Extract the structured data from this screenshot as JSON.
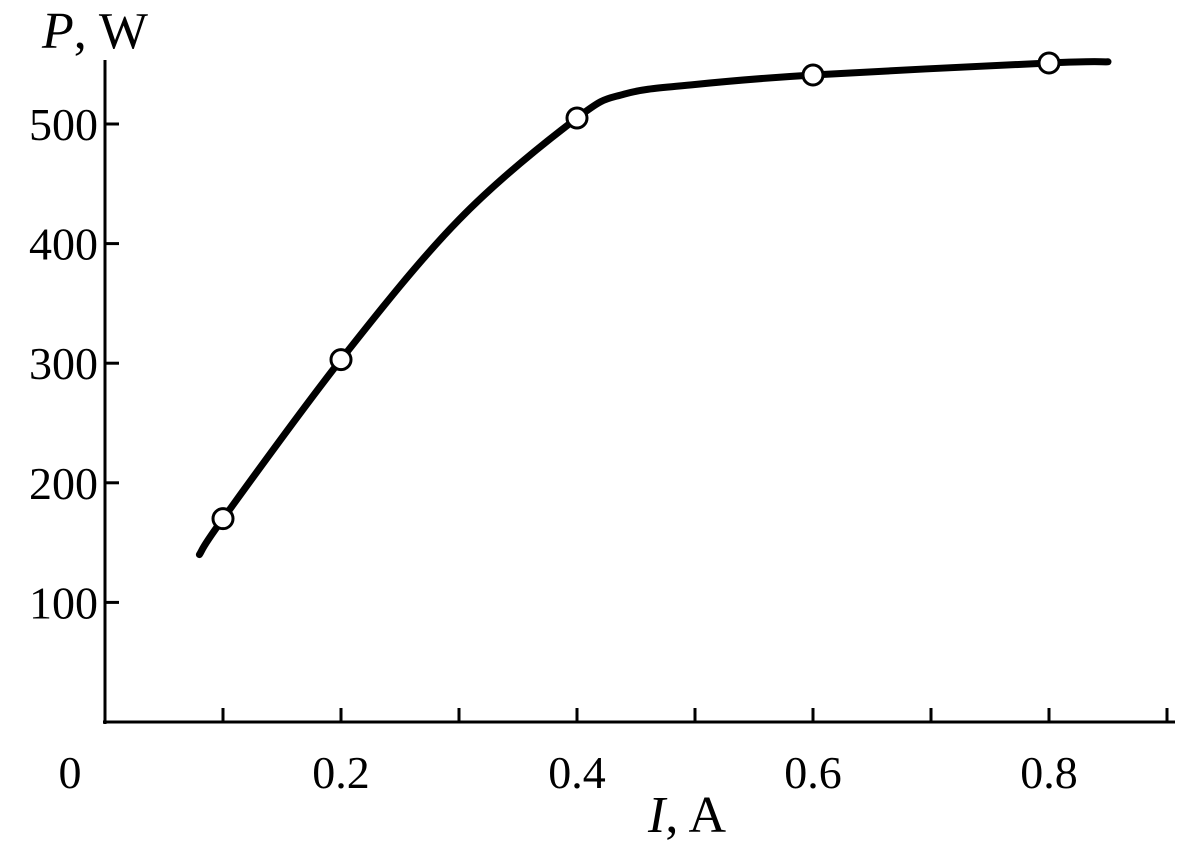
{
  "chart_data": {
    "type": "line",
    "xlabel_var": "I",
    "xlabel_unit": ", A",
    "ylabel_var": "P",
    "ylabel_unit": ", W",
    "origin_label": "0",
    "xlim": [
      0,
      0.9
    ],
    "ylim": [
      0,
      550
    ],
    "x_major_ticks": [
      0.2,
      0.4,
      0.6,
      0.8
    ],
    "x_tick_labels": [
      "0.2",
      "0.4",
      "0.6",
      "0.8"
    ],
    "x_minor_ticks": [
      0.1,
      0.3,
      0.5,
      0.7,
      0.9
    ],
    "y_ticks": [
      100,
      200,
      300,
      400,
      500
    ],
    "y_tick_labels": [
      "100",
      "200",
      "300",
      "400",
      "500"
    ],
    "grid": false,
    "points": [
      {
        "x": 0.1,
        "y": 170
      },
      {
        "x": 0.2,
        "y": 303
      },
      {
        "x": 0.4,
        "y": 505
      },
      {
        "x": 0.6,
        "y": 541
      },
      {
        "x": 0.8,
        "y": 551
      }
    ],
    "curve": [
      {
        "x": 0.08,
        "y": 140
      },
      {
        "x": 0.1,
        "y": 170
      },
      {
        "x": 0.2,
        "y": 303
      },
      {
        "x": 0.3,
        "y": 420
      },
      {
        "x": 0.4,
        "y": 505
      },
      {
        "x": 0.44,
        "y": 525
      },
      {
        "x": 0.5,
        "y": 533
      },
      {
        "x": 0.6,
        "y": 541
      },
      {
        "x": 0.8,
        "y": 551
      },
      {
        "x": 0.85,
        "y": 552
      }
    ]
  }
}
